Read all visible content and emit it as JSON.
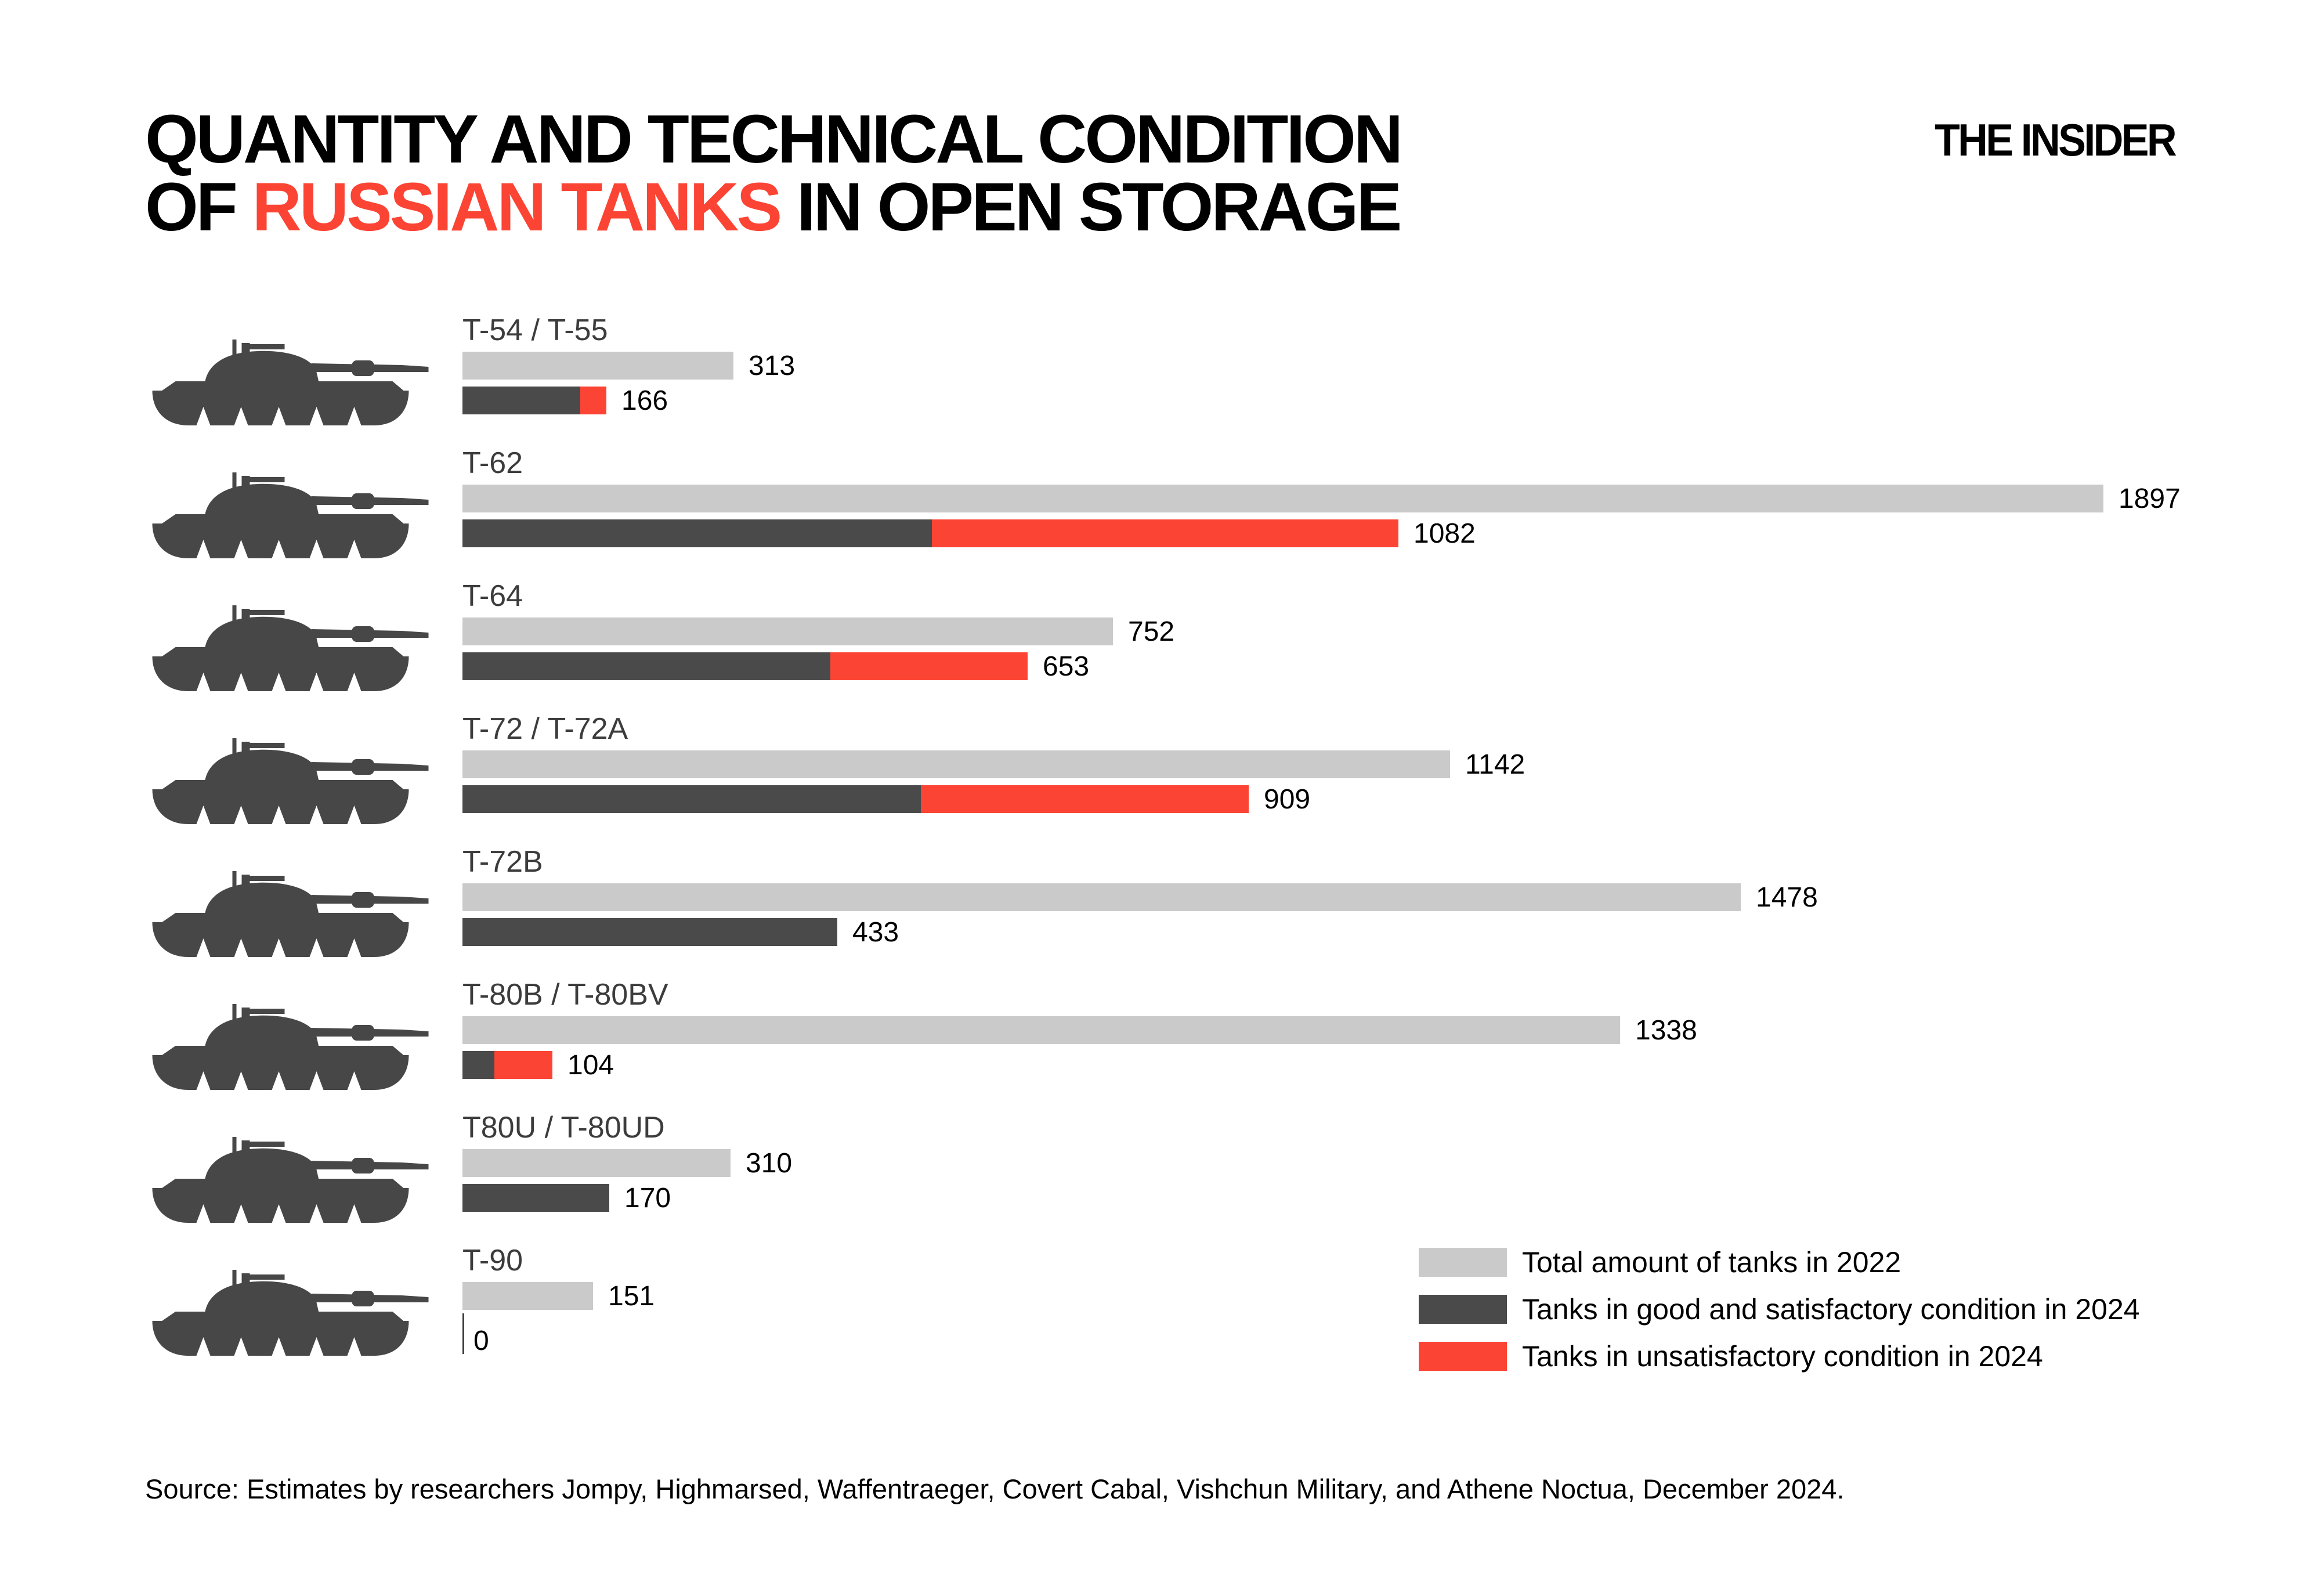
{
  "header": {
    "title_line1": "QUANTITY AND TECHNICAL CONDITION",
    "title_line2_prefix": "OF ",
    "title_line2_red": "RUSSIAN TANKS",
    "title_line2_suffix": " IN OPEN STORAGE",
    "logo": "THE INSIDER"
  },
  "colors": {
    "total_2022": "#cacaca",
    "good_2024": "#4a4a4a",
    "unsat_2024": "#fc4434",
    "title_red": "#fc4434",
    "category_label": "#3c3c3c",
    "tank_silhouette": "#474747"
  },
  "legend": {
    "items": [
      {
        "label": "Total amount of tanks in 2022",
        "color": "#cacaca"
      },
      {
        "label": "Tanks in good and satisfactory condition in 2024",
        "color": "#4a4a4a"
      },
      {
        "label": "Tanks in unsatisfactory condition in 2024",
        "color": "#fc4434"
      }
    ]
  },
  "source": "Source: Estimates by researchers Jompy, Highmarsed, Waffentraeger, Covert Cabal, Vishchun Military, and Athene Noctua, December 2024.",
  "chart_data": {
    "type": "bar",
    "orientation": "horizontal",
    "xlim": [
      0,
      1897
    ],
    "grid": false,
    "legend_position": "bottom-right",
    "series_names": [
      "Total amount of tanks in 2022",
      "Tanks in good and satisfactory condition in 2024",
      "Tanks in unsatisfactory condition in 2024"
    ],
    "rows": [
      {
        "category": "T-54 / T-55",
        "total_2022": 313,
        "total_2024": 166,
        "good_2024_est": 136,
        "unsat_2024_est": 30
      },
      {
        "category": "T-62",
        "total_2022": 1897,
        "total_2024": 1082,
        "good_2024_est": 543,
        "unsat_2024_est": 539
      },
      {
        "category": "T-64",
        "total_2022": 752,
        "total_2024": 653,
        "good_2024_est": 425,
        "unsat_2024_est": 228
      },
      {
        "category": "T-72 / T-72A",
        "total_2022": 1142,
        "total_2024": 909,
        "good_2024_est": 530,
        "unsat_2024_est": 379
      },
      {
        "category": "T-72B",
        "total_2022": 1478,
        "total_2024": 433,
        "good_2024_est": 433,
        "unsat_2024_est": 0
      },
      {
        "category": "T-80B / T-80BV",
        "total_2022": 1338,
        "total_2024": 104,
        "good_2024_est": 37,
        "unsat_2024_est": 67
      },
      {
        "category": "T80U / T-80UD",
        "total_2022": 310,
        "total_2024": 170,
        "good_2024_est": 170,
        "unsat_2024_est": 0
      },
      {
        "category": "T-90",
        "total_2022": 151,
        "total_2024": 0,
        "good_2024_est": 0,
        "unsat_2024_est": 0
      }
    ]
  }
}
